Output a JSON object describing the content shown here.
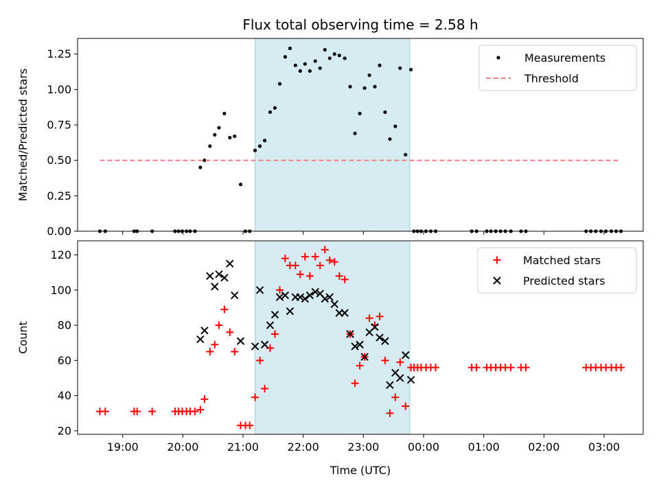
{
  "chart_data": [
    {
      "type": "scatter",
      "title": "Flux total observing time = 2.58 h",
      "xlabel": "",
      "ylabel": "Matched/Predicted stars",
      "ylim": [
        0,
        1.36
      ],
      "yticks": [
        "0.00",
        "0.25",
        "0.50",
        "0.75",
        "1.00",
        "1.25"
      ],
      "xlim": [
        18.25,
        27.65
      ],
      "shaded_interval": [
        21.2,
        23.77
      ],
      "legend": {
        "position": "upper right",
        "entries": [
          "Measurements",
          "Threshold"
        ]
      },
      "series": [
        {
          "name": "Measurements",
          "marker": "dot",
          "color": "#000000",
          "x": [
            18.62,
            18.71,
            19.19,
            19.24,
            19.49,
            19.87,
            19.93,
            19.99,
            20.06,
            20.12,
            20.2,
            20.29,
            20.36,
            20.45,
            20.53,
            20.6,
            20.69,
            20.78,
            20.86,
            20.96,
            21.04,
            21.11,
            21.2,
            21.28,
            21.36,
            21.45,
            21.53,
            21.61,
            21.7,
            21.78,
            21.87,
            21.95,
            22.03,
            22.11,
            22.2,
            22.28,
            22.36,
            22.44,
            22.52,
            22.6,
            22.69,
            22.78,
            22.86,
            22.94,
            23.02,
            23.1,
            23.19,
            23.27,
            23.36,
            23.44,
            23.53,
            23.61,
            23.7,
            23.79,
            23.84,
            23.9,
            23.96,
            24.04,
            24.12,
            24.2,
            24.8,
            24.88,
            25.05,
            25.12,
            25.2,
            25.28,
            25.36,
            25.45,
            25.62,
            25.7,
            26.7,
            26.78,
            26.86,
            26.95,
            27.03,
            27.12,
            27.2,
            27.28
          ],
          "y": [
            0,
            0,
            0,
            0,
            0,
            0,
            0,
            0,
            0,
            0,
            0,
            0.45,
            0.5,
            0.6,
            0.68,
            0.73,
            0.83,
            0.66,
            0.67,
            0.33,
            0,
            0,
            0.57,
            0.6,
            0.64,
            0.84,
            0.87,
            1.04,
            1.23,
            1.29,
            1.17,
            1.13,
            1.18,
            1.13,
            1.2,
            1.15,
            1.28,
            1.22,
            1.25,
            1.24,
            1.22,
            1.02,
            0.69,
            0.83,
            1.01,
            1.1,
            1.02,
            1.17,
            0.84,
            0.65,
            0.74,
            1.15,
            0.54,
            1.14,
            0,
            0,
            0,
            0,
            0,
            0,
            0,
            0,
            0,
            0,
            0,
            0,
            0,
            0,
            0,
            0,
            0,
            0,
            0,
            0,
            0,
            0,
            0,
            0
          ]
        },
        {
          "name": "Threshold",
          "style": "dashed",
          "color": "#f08080",
          "x": [
            18.62,
            27.28
          ],
          "y": [
            0.5,
            0.5
          ]
        }
      ]
    },
    {
      "type": "scatter",
      "title": "",
      "xlabel": "Time (UTC)",
      "ylabel": "Count",
      "ylim": [
        18,
        128
      ],
      "yticks": [
        "20",
        "40",
        "60",
        "80",
        "100",
        "120"
      ],
      "xlim": [
        18.25,
        27.65
      ],
      "xticks": [
        {
          "value": 19,
          "label": "19:00"
        },
        {
          "value": 20,
          "label": "20:00"
        },
        {
          "value": 21,
          "label": "21:00"
        },
        {
          "value": 22,
          "label": "22:00"
        },
        {
          "value": 23,
          "label": "23:00"
        },
        {
          "value": 24,
          "label": "00:00"
        },
        {
          "value": 25,
          "label": "01:00"
        },
        {
          "value": 26,
          "label": "02:00"
        },
        {
          "value": 27,
          "label": "03:00"
        }
      ],
      "shaded_interval": [
        21.2,
        23.77
      ],
      "legend": {
        "position": "upper right",
        "entries": [
          "Matched stars",
          "Predicted stars"
        ]
      },
      "series": [
        {
          "name": "Matched stars",
          "marker": "plus",
          "color": "#ff0000",
          "x": [
            18.62,
            18.71,
            19.19,
            19.24,
            19.49,
            19.87,
            19.93,
            19.99,
            20.06,
            20.12,
            20.2,
            20.29,
            20.36,
            20.45,
            20.53,
            20.6,
            20.69,
            20.78,
            20.86,
            20.96,
            21.04,
            21.11,
            21.2,
            21.28,
            21.36,
            21.45,
            21.53,
            21.61,
            21.7,
            21.78,
            21.87,
            21.95,
            22.03,
            22.11,
            22.2,
            22.28,
            22.36,
            22.44,
            22.52,
            22.6,
            22.69,
            22.78,
            22.86,
            22.94,
            23.02,
            23.1,
            23.19,
            23.27,
            23.36,
            23.44,
            23.53,
            23.61,
            23.7,
            23.79,
            23.84,
            23.9,
            23.96,
            24.04,
            24.12,
            24.2,
            24.8,
            24.88,
            25.05,
            25.12,
            25.2,
            25.28,
            25.36,
            25.45,
            25.62,
            25.7,
            26.7,
            26.78,
            26.86,
            26.95,
            27.03,
            27.12,
            27.2,
            27.28
          ],
          "y": [
            31,
            31,
            31,
            31,
            31,
            31,
            31,
            31,
            31,
            31,
            31,
            32,
            38,
            65,
            69,
            80,
            89,
            76,
            65,
            23,
            23,
            23,
            39,
            60,
            44,
            67,
            75,
            100,
            118,
            114,
            114,
            109,
            119,
            108,
            119,
            114,
            123,
            117,
            116,
            108,
            106,
            75,
            47,
            57,
            62,
            84,
            80,
            85,
            60,
            30,
            39,
            59,
            34,
            56,
            56,
            56,
            56,
            56,
            56,
            56,
            56,
            56,
            56,
            56,
            56,
            56,
            56,
            56,
            56,
            56,
            56,
            56,
            56,
            56,
            56,
            56,
            56,
            56
          ]
        },
        {
          "name": "Predicted stars",
          "marker": "x",
          "color": "#000000",
          "x": [
            20.29,
            20.36,
            20.45,
            20.53,
            20.6,
            20.69,
            20.78,
            20.86,
            20.96,
            21.2,
            21.28,
            21.36,
            21.45,
            21.53,
            21.61,
            21.7,
            21.78,
            21.87,
            21.95,
            22.03,
            22.11,
            22.2,
            22.28,
            22.36,
            22.44,
            22.52,
            22.6,
            22.69,
            22.78,
            22.86,
            22.94,
            23.02,
            23.1,
            23.19,
            23.27,
            23.36,
            23.44,
            23.53,
            23.61,
            23.7,
            23.79
          ],
          "y": [
            72,
            77,
            108,
            102,
            109,
            107,
            115,
            97,
            71,
            68,
            100,
            69,
            80,
            86,
            96,
            97,
            88,
            96,
            96,
            95,
            97,
            99,
            98,
            95,
            96,
            92,
            87,
            87,
            75,
            68,
            69,
            62,
            76,
            79,
            73,
            71,
            46,
            53,
            50,
            63,
            49
          ]
        }
      ]
    }
  ]
}
